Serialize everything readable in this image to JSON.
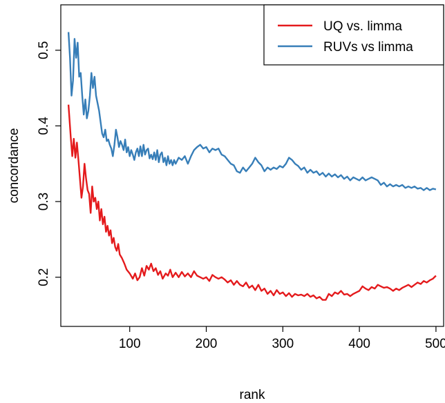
{
  "chart_data": {
    "type": "line",
    "title": "",
    "xlabel": "rank",
    "ylabel": "concordance",
    "xlim": [
      10,
      510
    ],
    "ylim": [
      0.135,
      0.56
    ],
    "xticks": [
      100,
      200,
      300,
      400,
      500
    ],
    "yticks": [
      0.2,
      0.3,
      0.4,
      0.5
    ],
    "xtick_labels": [
      "100",
      "200",
      "300",
      "400",
      "500"
    ],
    "ytick_labels": [
      "0.2",
      "0.3",
      "0.4",
      "0.5"
    ],
    "grid": false,
    "legend_position": "top-right",
    "series": [
      {
        "name": "UQ vs. limma",
        "color": "#E41A1C",
        "points": [
          [
            20,
            0.428
          ],
          [
            23,
            0.385
          ],
          [
            25,
            0.36
          ],
          [
            27,
            0.383
          ],
          [
            29,
            0.358
          ],
          [
            31,
            0.378
          ],
          [
            33,
            0.355
          ],
          [
            35,
            0.33
          ],
          [
            37,
            0.305
          ],
          [
            39,
            0.32
          ],
          [
            41,
            0.35
          ],
          [
            43,
            0.33
          ],
          [
            45,
            0.315
          ],
          [
            47,
            0.31
          ],
          [
            49,
            0.285
          ],
          [
            51,
            0.32
          ],
          [
            53,
            0.3
          ],
          [
            55,
            0.305
          ],
          [
            57,
            0.29
          ],
          [
            59,
            0.3
          ],
          [
            61,
            0.275
          ],
          [
            63,
            0.29
          ],
          [
            65,
            0.27
          ],
          [
            67,
            0.28
          ],
          [
            69,
            0.26
          ],
          [
            71,
            0.268
          ],
          [
            73,
            0.255
          ],
          [
            75,
            0.262
          ],
          [
            77,
            0.245
          ],
          [
            79,
            0.252
          ],
          [
            81,
            0.24
          ],
          [
            83,
            0.235
          ],
          [
            85,
            0.244
          ],
          [
            87,
            0.23
          ],
          [
            90,
            0.225
          ],
          [
            93,
            0.218
          ],
          [
            96,
            0.21
          ],
          [
            100,
            0.205
          ],
          [
            104,
            0.198
          ],
          [
            107,
            0.205
          ],
          [
            110,
            0.196
          ],
          [
            113,
            0.2
          ],
          [
            116,
            0.212
          ],
          [
            119,
            0.202
          ],
          [
            122,
            0.215
          ],
          [
            125,
            0.21
          ],
          [
            128,
            0.218
          ],
          [
            131,
            0.208
          ],
          [
            134,
            0.212
          ],
          [
            137,
            0.203
          ],
          [
            140,
            0.208
          ],
          [
            143,
            0.198
          ],
          [
            147,
            0.205
          ],
          [
            150,
            0.202
          ],
          [
            153,
            0.21
          ],
          [
            156,
            0.2
          ],
          [
            160,
            0.206
          ],
          [
            164,
            0.2
          ],
          [
            168,
            0.207
          ],
          [
            172,
            0.201
          ],
          [
            176,
            0.205
          ],
          [
            180,
            0.2
          ],
          [
            184,
            0.208
          ],
          [
            188,
            0.202
          ],
          [
            192,
            0.2
          ],
          [
            196,
            0.198
          ],
          [
            200,
            0.2
          ],
          [
            204,
            0.195
          ],
          [
            208,
            0.203
          ],
          [
            212,
            0.2
          ],
          [
            216,
            0.198
          ],
          [
            220,
            0.2
          ],
          [
            224,
            0.197
          ],
          [
            228,
            0.193
          ],
          [
            232,
            0.196
          ],
          [
            236,
            0.19
          ],
          [
            240,
            0.195
          ],
          [
            244,
            0.19
          ],
          [
            248,
            0.188
          ],
          [
            252,
            0.193
          ],
          [
            256,
            0.186
          ],
          [
            260,
            0.189
          ],
          [
            264,
            0.183
          ],
          [
            268,
            0.19
          ],
          [
            272,
            0.182
          ],
          [
            276,
            0.185
          ],
          [
            280,
            0.178
          ],
          [
            284,
            0.182
          ],
          [
            288,
            0.176
          ],
          [
            292,
            0.183
          ],
          [
            296,
            0.178
          ],
          [
            300,
            0.18
          ],
          [
            304,
            0.175
          ],
          [
            308,
            0.179
          ],
          [
            312,
            0.174
          ],
          [
            316,
            0.178
          ],
          [
            320,
            0.176
          ],
          [
            324,
            0.177
          ],
          [
            328,
            0.175
          ],
          [
            332,
            0.178
          ],
          [
            336,
            0.174
          ],
          [
            340,
            0.176
          ],
          [
            344,
            0.172
          ],
          [
            348,
            0.174
          ],
          [
            352,
            0.17
          ],
          [
            356,
            0.17
          ],
          [
            360,
            0.178
          ],
          [
            364,
            0.175
          ],
          [
            368,
            0.18
          ],
          [
            372,
            0.178
          ],
          [
            376,
            0.182
          ],
          [
            380,
            0.177
          ],
          [
            384,
            0.178
          ],
          [
            388,
            0.175
          ],
          [
            392,
            0.178
          ],
          [
            396,
            0.18
          ],
          [
            400,
            0.182
          ],
          [
            404,
            0.188
          ],
          [
            408,
            0.185
          ],
          [
            412,
            0.183
          ],
          [
            416,
            0.187
          ],
          [
            420,
            0.185
          ],
          [
            424,
            0.19
          ],
          [
            428,
            0.188
          ],
          [
            432,
            0.186
          ],
          [
            436,
            0.187
          ],
          [
            440,
            0.185
          ],
          [
            444,
            0.182
          ],
          [
            448,
            0.185
          ],
          [
            452,
            0.183
          ],
          [
            456,
            0.186
          ],
          [
            460,
            0.188
          ],
          [
            464,
            0.19
          ],
          [
            468,
            0.187
          ],
          [
            472,
            0.19
          ],
          [
            476,
            0.193
          ],
          [
            480,
            0.191
          ],
          [
            484,
            0.195
          ],
          [
            488,
            0.193
          ],
          [
            492,
            0.196
          ],
          [
            496,
            0.198
          ],
          [
            500,
            0.202
          ]
        ]
      },
      {
        "name": "RUVs vs limma",
        "color": "#377EB8",
        "points": [
          [
            20,
            0.524
          ],
          [
            22,
            0.49
          ],
          [
            24,
            0.44
          ],
          [
            26,
            0.46
          ],
          [
            28,
            0.515
          ],
          [
            30,
            0.49
          ],
          [
            32,
            0.51
          ],
          [
            34,
            0.465
          ],
          [
            36,
            0.47
          ],
          [
            38,
            0.44
          ],
          [
            40,
            0.415
          ],
          [
            42,
            0.435
          ],
          [
            44,
            0.41
          ],
          [
            46,
            0.42
          ],
          [
            48,
            0.44
          ],
          [
            50,
            0.47
          ],
          [
            52,
            0.45
          ],
          [
            54,
            0.465
          ],
          [
            56,
            0.44
          ],
          [
            58,
            0.43
          ],
          [
            60,
            0.42
          ],
          [
            62,
            0.405
          ],
          [
            64,
            0.39
          ],
          [
            66,
            0.385
          ],
          [
            68,
            0.395
          ],
          [
            70,
            0.38
          ],
          [
            72,
            0.382
          ],
          [
            74,
            0.375
          ],
          [
            76,
            0.37
          ],
          [
            78,
            0.36
          ],
          [
            80,
            0.375
          ],
          [
            82,
            0.395
          ],
          [
            84,
            0.385
          ],
          [
            86,
            0.372
          ],
          [
            88,
            0.38
          ],
          [
            90,
            0.375
          ],
          [
            92,
            0.368
          ],
          [
            94,
            0.382
          ],
          [
            96,
            0.365
          ],
          [
            98,
            0.372
          ],
          [
            100,
            0.36
          ],
          [
            102,
            0.368
          ],
          [
            104,
            0.362
          ],
          [
            106,
            0.355
          ],
          [
            108,
            0.365
          ],
          [
            110,
            0.37
          ],
          [
            112,
            0.36
          ],
          [
            114,
            0.373
          ],
          [
            116,
            0.36
          ],
          [
            118,
            0.375
          ],
          [
            120,
            0.362
          ],
          [
            122,
            0.368
          ],
          [
            124,
            0.37
          ],
          [
            126,
            0.357
          ],
          [
            128,
            0.362
          ],
          [
            130,
            0.356
          ],
          [
            132,
            0.365
          ],
          [
            134,
            0.355
          ],
          [
            136,
            0.368
          ],
          [
            138,
            0.352
          ],
          [
            140,
            0.362
          ],
          [
            142,
            0.365
          ],
          [
            144,
            0.352
          ],
          [
            146,
            0.358
          ],
          [
            148,
            0.348
          ],
          [
            150,
            0.36
          ],
          [
            152,
            0.35
          ],
          [
            154,
            0.355
          ],
          [
            156,
            0.348
          ],
          [
            158,
            0.355
          ],
          [
            160,
            0.35
          ],
          [
            164,
            0.358
          ],
          [
            168,
            0.355
          ],
          [
            172,
            0.36
          ],
          [
            176,
            0.35
          ],
          [
            180,
            0.36
          ],
          [
            184,
            0.368
          ],
          [
            188,
            0.372
          ],
          [
            192,
            0.375
          ],
          [
            196,
            0.37
          ],
          [
            200,
            0.372
          ],
          [
            204,
            0.365
          ],
          [
            208,
            0.37
          ],
          [
            212,
            0.368
          ],
          [
            216,
            0.37
          ],
          [
            220,
            0.362
          ],
          [
            224,
            0.36
          ],
          [
            228,
            0.355
          ],
          [
            232,
            0.35
          ],
          [
            236,
            0.348
          ],
          [
            240,
            0.34
          ],
          [
            244,
            0.338
          ],
          [
            248,
            0.345
          ],
          [
            252,
            0.34
          ],
          [
            256,
            0.345
          ],
          [
            260,
            0.35
          ],
          [
            264,
            0.358
          ],
          [
            268,
            0.352
          ],
          [
            272,
            0.348
          ],
          [
            276,
            0.34
          ],
          [
            280,
            0.345
          ],
          [
            284,
            0.342
          ],
          [
            288,
            0.345
          ],
          [
            292,
            0.343
          ],
          [
            296,
            0.347
          ],
          [
            300,
            0.345
          ],
          [
            304,
            0.35
          ],
          [
            308,
            0.358
          ],
          [
            312,
            0.355
          ],
          [
            316,
            0.35
          ],
          [
            320,
            0.347
          ],
          [
            324,
            0.342
          ],
          [
            328,
            0.345
          ],
          [
            332,
            0.338
          ],
          [
            336,
            0.342
          ],
          [
            340,
            0.338
          ],
          [
            344,
            0.34
          ],
          [
            348,
            0.335
          ],
          [
            352,
            0.338
          ],
          [
            356,
            0.333
          ],
          [
            360,
            0.337
          ],
          [
            364,
            0.333
          ],
          [
            368,
            0.336
          ],
          [
            372,
            0.332
          ],
          [
            376,
            0.335
          ],
          [
            380,
            0.33
          ],
          [
            384,
            0.333
          ],
          [
            388,
            0.328
          ],
          [
            392,
            0.332
          ],
          [
            396,
            0.33
          ],
          [
            400,
            0.328
          ],
          [
            404,
            0.332
          ],
          [
            408,
            0.328
          ],
          [
            412,
            0.33
          ],
          [
            416,
            0.332
          ],
          [
            420,
            0.33
          ],
          [
            424,
            0.328
          ],
          [
            428,
            0.322
          ],
          [
            432,
            0.325
          ],
          [
            436,
            0.32
          ],
          [
            440,
            0.323
          ],
          [
            444,
            0.32
          ],
          [
            448,
            0.322
          ],
          [
            452,
            0.32
          ],
          [
            456,
            0.322
          ],
          [
            460,
            0.318
          ],
          [
            464,
            0.32
          ],
          [
            468,
            0.318
          ],
          [
            472,
            0.32
          ],
          [
            476,
            0.317
          ],
          [
            480,
            0.318
          ],
          [
            484,
            0.315
          ],
          [
            488,
            0.318
          ],
          [
            492,
            0.315
          ],
          [
            496,
            0.317
          ],
          [
            500,
            0.316
          ]
        ]
      }
    ]
  }
}
